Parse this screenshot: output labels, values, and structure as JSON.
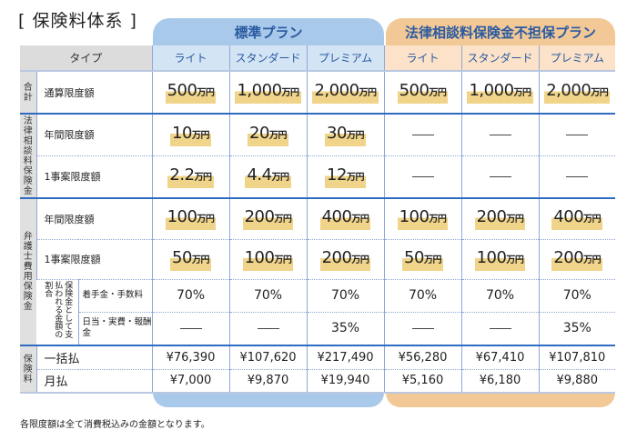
{
  "title": "[ 保険料体系 ]",
  "groups": {
    "standard": "標準プラン",
    "no_legal": "法律相談料保険金不担保プラン"
  },
  "header": {
    "type": "タイプ",
    "plans": [
      "ライト",
      "スタンダード",
      "プレミアム",
      "ライト",
      "スタンダード",
      "プレミアム"
    ]
  },
  "unit": "万円",
  "categories": {
    "total": "合計",
    "legal": "法律相談料保険金",
    "lawyer": "弁護士費用保険金",
    "premium": "保険料",
    "ratio": "保険金として支払われる金額の割合"
  },
  "rows": {
    "total": {
      "label": "通算限度額",
      "values": [
        "500",
        "1,000",
        "2,000",
        "500",
        "1,000",
        "2,000"
      ]
    },
    "legal_annual": {
      "label": "年間限度額",
      "values": [
        "10",
        "20",
        "30",
        null,
        null,
        null
      ]
    },
    "legal_case": {
      "label": "1事案限度額",
      "values": [
        "2.2",
        "4.4",
        "12",
        null,
        null,
        null
      ]
    },
    "lawyer_annual": {
      "label": "年間限度額",
      "values": [
        "100",
        "200",
        "400",
        "100",
        "200",
        "400"
      ]
    },
    "lawyer_case": {
      "label": "1事案限度額",
      "values": [
        "50",
        "100",
        "200",
        "50",
        "100",
        "200"
      ]
    },
    "retainer": {
      "label": "着手金・手数料",
      "values": [
        "70%",
        "70%",
        "70%",
        "70%",
        "70%",
        "70%"
      ]
    },
    "daily": {
      "label": "日当・実費・報酬金",
      "values": [
        null,
        null,
        "35%",
        null,
        null,
        "35%"
      ]
    },
    "lump": {
      "label": "一括払",
      "values": [
        "¥76,390",
        "¥107,620",
        "¥217,490",
        "¥56,280",
        "¥67,410",
        "¥107,810"
      ]
    },
    "monthly": {
      "label": "月払",
      "values": [
        "¥7,000",
        "¥9,870",
        "¥19,940",
        "¥5,160",
        "¥6,180",
        "¥9,880"
      ]
    }
  },
  "note": "各限度額は全て消費税込みの金額となります。",
  "colors": {
    "standard": "#a8c9ea",
    "no_legal": "#f2c896",
    "highlight": "#f0d48a",
    "title_blue": "#2a5aa0"
  }
}
